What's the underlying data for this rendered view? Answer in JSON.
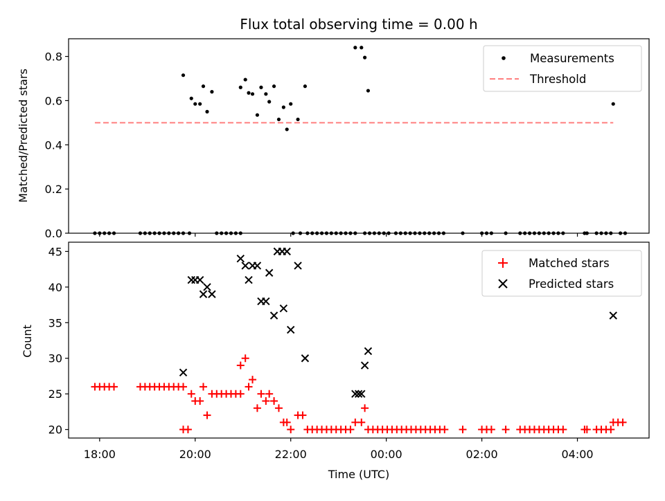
{
  "chart_data": [
    {
      "type": "scatter",
      "title": "Flux total observing time = 0.00 h",
      "xlabel": "",
      "ylabel": "Matched/Predicted stars",
      "ylim": [
        0,
        0.88
      ],
      "yticks": [
        "0.0",
        "0.2",
        "0.4",
        "0.6",
        "0.8"
      ],
      "ytick_values": [
        0,
        0.2,
        0.4,
        0.6,
        0.8
      ],
      "legend": {
        "placement": "top-right",
        "entries": [
          "Measurements",
          "Threshold"
        ]
      },
      "threshold": {
        "value": 0.5,
        "x": [
          -0.1,
          10.75
        ],
        "color": "#ff7f7f"
      },
      "series": [
        {
          "name": "Measurements",
          "color": "#000000",
          "points": [
            [
              -0.1,
              0
            ],
            [
              0.0,
              0
            ],
            [
              0.1,
              0
            ],
            [
              0.2,
              0
            ],
            [
              0.3,
              0
            ],
            [
              0.85,
              0
            ],
            [
              0.95,
              0
            ],
            [
              1.05,
              0
            ],
            [
              1.15,
              0
            ],
            [
              1.25,
              0
            ],
            [
              1.35,
              0
            ],
            [
              1.45,
              0
            ],
            [
              1.55,
              0
            ],
            [
              1.65,
              0
            ],
            [
              1.75,
              0
            ],
            [
              1.75,
              0.715
            ],
            [
              1.88,
              0
            ],
            [
              1.92,
              0.61
            ],
            [
              2.0,
              0.585
            ],
            [
              2.1,
              0.585
            ],
            [
              2.17,
              0.665
            ],
            [
              2.25,
              0.55
            ],
            [
              2.35,
              0.64
            ],
            [
              2.45,
              0
            ],
            [
              2.55,
              0
            ],
            [
              2.65,
              0
            ],
            [
              2.75,
              0
            ],
            [
              2.85,
              0
            ],
            [
              2.95,
              0
            ],
            [
              2.95,
              0.66
            ],
            [
              3.05,
              0.695
            ],
            [
              3.12,
              0.635
            ],
            [
              3.2,
              0.63
            ],
            [
              3.3,
              0.535
            ],
            [
              3.38,
              0.66
            ],
            [
              3.48,
              0.63
            ],
            [
              3.55,
              0.595
            ],
            [
              3.65,
              0.665
            ],
            [
              3.75,
              0.515
            ],
            [
              3.85,
              0.57
            ],
            [
              3.92,
              0.47
            ],
            [
              4.0,
              0.585
            ],
            [
              4.15,
              0.515
            ],
            [
              4.3,
              0.665
            ],
            [
              4.05,
              0
            ],
            [
              4.2,
              0
            ],
            [
              4.35,
              0
            ],
            [
              4.45,
              0
            ],
            [
              4.55,
              0
            ],
            [
              4.65,
              0
            ],
            [
              4.75,
              0
            ],
            [
              4.85,
              0
            ],
            [
              4.95,
              0
            ],
            [
              5.05,
              0
            ],
            [
              5.15,
              0
            ],
            [
              5.25,
              0
            ],
            [
              5.35,
              0
            ],
            [
              5.35,
              0.84
            ],
            [
              5.48,
              0.84
            ],
            [
              5.55,
              0.795
            ],
            [
              5.62,
              0.645
            ],
            [
              5.55,
              0
            ],
            [
              5.65,
              0
            ],
            [
              5.75,
              0
            ],
            [
              5.85,
              0
            ],
            [
              5.95,
              0
            ],
            [
              6.05,
              0
            ],
            [
              6.2,
              0
            ],
            [
              6.3,
              0
            ],
            [
              6.4,
              0
            ],
            [
              6.5,
              0
            ],
            [
              6.6,
              0
            ],
            [
              6.7,
              0
            ],
            [
              6.8,
              0
            ],
            [
              6.9,
              0
            ],
            [
              7.0,
              0
            ],
            [
              7.1,
              0
            ],
            [
              7.2,
              0
            ],
            [
              7.6,
              0
            ],
            [
              8.0,
              0
            ],
            [
              8.1,
              0
            ],
            [
              8.2,
              0
            ],
            [
              8.5,
              0
            ],
            [
              8.8,
              0
            ],
            [
              8.9,
              0
            ],
            [
              9.0,
              0
            ],
            [
              9.1,
              0
            ],
            [
              9.2,
              0
            ],
            [
              9.3,
              0
            ],
            [
              9.4,
              0
            ],
            [
              9.5,
              0
            ],
            [
              9.6,
              0
            ],
            [
              9.7,
              0
            ],
            [
              10.15,
              0
            ],
            [
              10.2,
              0
            ],
            [
              10.4,
              0
            ],
            [
              10.5,
              0
            ],
            [
              10.6,
              0
            ],
            [
              10.7,
              0
            ],
            [
              10.75,
              0.585
            ],
            [
              10.9,
              0
            ],
            [
              11.0,
              0
            ]
          ]
        }
      ]
    },
    {
      "type": "scatter",
      "title": "",
      "xlabel": "Time (UTC)",
      "ylabel": "Count",
      "ylim": [
        18.8,
        46.3
      ],
      "yticks": [
        "20",
        "25",
        "30",
        "35",
        "40",
        "45"
      ],
      "ytick_values": [
        20,
        25,
        30,
        35,
        40,
        45
      ],
      "xlim": [
        -0.65,
        11.5
      ],
      "xticks": [
        "18:00",
        "20:00",
        "22:00",
        "00:00",
        "02:00",
        "04:00"
      ],
      "xtick_values": [
        0,
        2,
        4,
        6,
        8,
        10
      ],
      "legend": {
        "placement": "top-right",
        "entries": [
          "Matched stars",
          "Predicted stars"
        ]
      },
      "series": [
        {
          "name": "Matched stars",
          "color": "#ff0000",
          "points": [
            [
              -0.1,
              26
            ],
            [
              0.0,
              26
            ],
            [
              0.1,
              26
            ],
            [
              0.2,
              26
            ],
            [
              0.3,
              26
            ],
            [
              0.85,
              26
            ],
            [
              0.95,
              26
            ],
            [
              1.05,
              26
            ],
            [
              1.15,
              26
            ],
            [
              1.25,
              26
            ],
            [
              1.35,
              26
            ],
            [
              1.45,
              26
            ],
            [
              1.55,
              26
            ],
            [
              1.65,
              26
            ],
            [
              1.75,
              26
            ],
            [
              1.75,
              20
            ],
            [
              1.85,
              20
            ],
            [
              1.92,
              25
            ],
            [
              2.0,
              24
            ],
            [
              2.1,
              24
            ],
            [
              2.17,
              26
            ],
            [
              2.25,
              22
            ],
            [
              2.35,
              25
            ],
            [
              2.45,
              25
            ],
            [
              2.55,
              25
            ],
            [
              2.65,
              25
            ],
            [
              2.75,
              25
            ],
            [
              2.85,
              25
            ],
            [
              2.95,
              25
            ],
            [
              2.95,
              29
            ],
            [
              3.05,
              30
            ],
            [
              3.12,
              26
            ],
            [
              3.2,
              27
            ],
            [
              3.3,
              23
            ],
            [
              3.38,
              25
            ],
            [
              3.48,
              24
            ],
            [
              3.55,
              25
            ],
            [
              3.65,
              24
            ],
            [
              3.75,
              23
            ],
            [
              3.85,
              21
            ],
            [
              3.92,
              21
            ],
            [
              4.0,
              20
            ],
            [
              4.15,
              22
            ],
            [
              4.25,
              22
            ],
            [
              4.35,
              20
            ],
            [
              4.45,
              20
            ],
            [
              4.55,
              20
            ],
            [
              4.65,
              20
            ],
            [
              4.75,
              20
            ],
            [
              4.85,
              20
            ],
            [
              4.95,
              20
            ],
            [
              5.05,
              20
            ],
            [
              5.15,
              20
            ],
            [
              5.25,
              20
            ],
            [
              5.35,
              21
            ],
            [
              5.48,
              21
            ],
            [
              5.55,
              23
            ],
            [
              5.62,
              20
            ],
            [
              5.72,
              20
            ],
            [
              5.82,
              20
            ],
            [
              5.92,
              20
            ],
            [
              6.02,
              20
            ],
            [
              6.12,
              20
            ],
            [
              6.22,
              20
            ],
            [
              6.32,
              20
            ],
            [
              6.42,
              20
            ],
            [
              6.52,
              20
            ],
            [
              6.62,
              20
            ],
            [
              6.72,
              20
            ],
            [
              6.82,
              20
            ],
            [
              6.92,
              20
            ],
            [
              7.02,
              20
            ],
            [
              7.12,
              20
            ],
            [
              7.22,
              20
            ],
            [
              7.6,
              20
            ],
            [
              8.0,
              20
            ],
            [
              8.1,
              20
            ],
            [
              8.2,
              20
            ],
            [
              8.5,
              20
            ],
            [
              8.8,
              20
            ],
            [
              8.9,
              20
            ],
            [
              9.0,
              20
            ],
            [
              9.1,
              20
            ],
            [
              9.2,
              20
            ],
            [
              9.3,
              20
            ],
            [
              9.4,
              20
            ],
            [
              9.5,
              20
            ],
            [
              9.6,
              20
            ],
            [
              9.7,
              20
            ],
            [
              10.15,
              20
            ],
            [
              10.2,
              20
            ],
            [
              10.4,
              20
            ],
            [
              10.5,
              20
            ],
            [
              10.6,
              20
            ],
            [
              10.7,
              20
            ],
            [
              10.75,
              21
            ],
            [
              10.85,
              21
            ],
            [
              10.95,
              21
            ]
          ]
        },
        {
          "name": "Predicted stars",
          "color": "#000000",
          "points": [
            [
              1.75,
              28
            ],
            [
              1.92,
              41
            ],
            [
              2.0,
              41
            ],
            [
              2.1,
              41
            ],
            [
              2.17,
              39
            ],
            [
              2.25,
              40
            ],
            [
              2.35,
              39
            ],
            [
              2.95,
              44
            ],
            [
              3.05,
              43
            ],
            [
              3.12,
              41
            ],
            [
              3.2,
              43
            ],
            [
              3.3,
              43
            ],
            [
              3.38,
              38
            ],
            [
              3.48,
              38
            ],
            [
              3.55,
              42
            ],
            [
              3.65,
              36
            ],
            [
              3.72,
              45
            ],
            [
              3.82,
              45
            ],
            [
              3.92,
              45
            ],
            [
              3.85,
              37
            ],
            [
              4.0,
              34
            ],
            [
              4.15,
              43
            ],
            [
              4.3,
              30
            ],
            [
              5.35,
              25
            ],
            [
              5.42,
              25
            ],
            [
              5.48,
              25
            ],
            [
              5.55,
              29
            ],
            [
              5.62,
              31
            ],
            [
              10.75,
              36
            ]
          ]
        }
      ]
    }
  ]
}
